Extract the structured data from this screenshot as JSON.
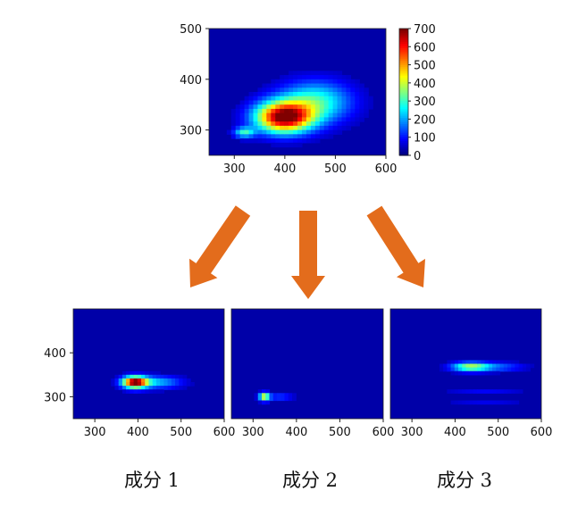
{
  "chart_data": [
    {
      "type": "heatmap",
      "title": "",
      "xlabel": "",
      "ylabel": "",
      "xlim": [
        250,
        600
      ],
      "ylim": [
        250,
        500
      ],
      "x_ticks": [
        "300",
        "400",
        "500",
        "600"
      ],
      "y_ticks": [
        "300",
        "400",
        "500"
      ],
      "colormap": "jet",
      "colorbar": {
        "range": [
          0,
          700
        ],
        "ticks": [
          "0",
          "100",
          "200",
          "300",
          "400",
          "500",
          "600",
          "700"
        ]
      },
      "blobs": [
        {
          "cx": 398,
          "cy": 325,
          "sx": 55,
          "sy": 30,
          "peak": 700
        },
        {
          "cx": 460,
          "cy": 355,
          "sx": 70,
          "sy": 40,
          "peak": 280
        },
        {
          "cx": 320,
          "cy": 295,
          "sx": 20,
          "sy": 10,
          "peak": 260
        }
      ]
    },
    {
      "type": "heatmap",
      "title": "",
      "xlim": [
        250,
        600
      ],
      "ylim": [
        250,
        500
      ],
      "x_ticks": [
        "300",
        "400",
        "500",
        "600"
      ],
      "y_ticks": [
        "300",
        "400"
      ],
      "colormap": "jet",
      "blobs": [
        {
          "cx": 393,
          "cy": 333,
          "sx": 28,
          "sy": 13,
          "peak": 1.0
        },
        {
          "cx": 445,
          "cy": 333,
          "sx": 55,
          "sy": 14,
          "peak": 0.28
        }
      ]
    },
    {
      "type": "heatmap",
      "title": "",
      "xlim": [
        250,
        600
      ],
      "ylim": [
        250,
        500
      ],
      "x_ticks": [
        "300",
        "400",
        "500",
        "600"
      ],
      "colormap": "jet",
      "blobs": [
        {
          "cx": 326,
          "cy": 300,
          "sx": 12,
          "sy": 9,
          "peak": 0.62
        },
        {
          "cx": 362,
          "cy": 300,
          "sx": 30,
          "sy": 9,
          "peak": 0.15
        }
      ]
    },
    {
      "type": "heatmap",
      "title": "",
      "xlim": [
        250,
        600
      ],
      "ylim": [
        250,
        500
      ],
      "x_ticks": [
        "300",
        "400",
        "500",
        "600"
      ],
      "colormap": "jet",
      "blobs": [
        {
          "cx": 435,
          "cy": 368,
          "sx": 42,
          "sy": 10,
          "peak": 0.5
        },
        {
          "cx": 500,
          "cy": 368,
          "sx": 60,
          "sy": 10,
          "peak": 0.18
        },
        {
          "cx": 470,
          "cy": 310,
          "sx": 90,
          "sy": 4,
          "peak": 0.12
        },
        {
          "cx": 470,
          "cy": 290,
          "sx": 90,
          "sy": 4,
          "peak": 0.1
        }
      ]
    }
  ],
  "captions": [
    "成分 1",
    "成分 2",
    "成分 3"
  ],
  "colors": {
    "arrow": "#e36c1c",
    "background": "#00008a"
  }
}
